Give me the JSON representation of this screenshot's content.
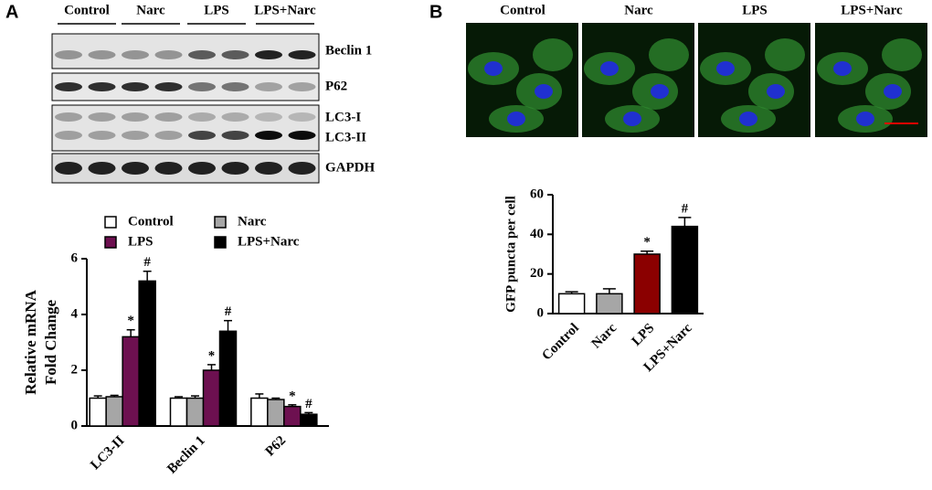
{
  "panel_labels": [
    "A",
    "B"
  ],
  "blot": {
    "lanes": [
      "Control",
      "Narc",
      "LPS",
      "LPS+Narc"
    ],
    "bands": [
      "Beclin 1",
      "P62",
      "LC3-I",
      "LC3-II",
      "GAPDH"
    ]
  },
  "microscopy": {
    "conditions": [
      "Control",
      "Narc",
      "LPS",
      "LPS+Narc"
    ]
  },
  "chart_data": [
    {
      "type": "bar",
      "ylabel": [
        "Relative mRNA",
        "Fold Change"
      ],
      "categories": [
        "LC3-II",
        "Beclin 1",
        "P62"
      ],
      "series": [
        {
          "name": "Control",
          "color": "#ffffff",
          "values": [
            1.0,
            1.0,
            1.0
          ],
          "errors": [
            0.08,
            0.05,
            0.15
          ]
        },
        {
          "name": "Narc",
          "color": "#a6a6a6",
          "values": [
            1.05,
            1.0,
            0.95
          ],
          "errors": [
            0.05,
            0.08,
            0.05
          ]
        },
        {
          "name": "LPS",
          "color": "#6d1050",
          "values": [
            3.2,
            2.0,
            0.7
          ],
          "errors": [
            0.25,
            0.2,
            0.06
          ],
          "annotation": "*"
        },
        {
          "name": "LPS+Narc",
          "color": "#000000",
          "values": [
            5.2,
            3.4,
            0.42
          ],
          "errors": [
            0.35,
            0.38,
            0.06
          ],
          "annotation": "#"
        }
      ],
      "ylim": [
        0,
        6
      ],
      "yticks": [
        0,
        2,
        4,
        6
      ]
    },
    {
      "type": "bar",
      "ylabel": "GFP puncta per cell",
      "categories": [
        "Control",
        "Narc",
        "LPS",
        "LPS+Narc"
      ],
      "values": [
        10,
        10,
        30,
        44
      ],
      "errors": [
        1,
        2.5,
        1.5,
        4.5
      ],
      "colors": [
        "#ffffff",
        "#a6a6a6",
        "#8b0000",
        "#000000"
      ],
      "annotations": [
        null,
        null,
        "*",
        "#"
      ],
      "ylim": [
        0,
        60
      ],
      "yticks": [
        0,
        20,
        40,
        60
      ]
    }
  ]
}
